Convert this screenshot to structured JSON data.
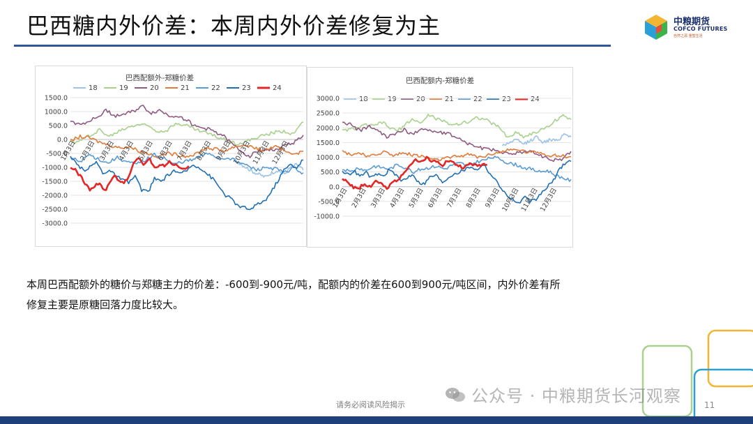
{
  "slide": {
    "title": "巴西糖内外价差：本周内外价差修复为主",
    "logo": {
      "cn": "中粮期货",
      "en": "COFCO FUTURES",
      "tag": "自然之源 重塑生活"
    },
    "summary": "本周巴西配额外的糖价与郑糖主力的价差：-600到-900元/吨，配额内的价差在600到900元/吨区间，内外价差有所修复主要是原糖回落力度比较大。",
    "disclaimer": "请务必阅读风险揭示",
    "page_number": "11",
    "watermark": "公众号 · 中粮期货长河观察"
  },
  "colors": {
    "title_rule": "#2f5597",
    "footer": "#1f3f7a",
    "s18": "#9dc3e6",
    "s19": "#a9d18e",
    "s20": "#8e5a7f",
    "s21": "#e07b39",
    "s22": "#5b9bd5",
    "s23": "#1f6fb2",
    "s24": "#e32626"
  },
  "chart_data": [
    {
      "type": "line",
      "title": "巴西配额外-郑糖价差",
      "ylim": [
        -3000,
        1500
      ],
      "yticks": [
        "1500.0",
        "1000.0",
        "500.0",
        "0.0",
        "-500.0",
        "-1000.0",
        "-1500.0",
        "-2000.0",
        "-2500.0",
        "-3000.0"
      ],
      "xticks": [
        "1月3日",
        "2月3日",
        "3月3日",
        "4月3日",
        "5月3日",
        "6月3日",
        "7月3日",
        "8月3日",
        "9月3日",
        "10月3日",
        "11月3日",
        "12月3日"
      ],
      "legend_position": "top",
      "series": [
        {
          "name": "18",
          "color": "#9dc3e6",
          "start": 8.4,
          "end": 12,
          "values": [
            -700,
            -850,
            -1000,
            -1150,
            -1250,
            -1350,
            -1200,
            -1100,
            -1250,
            -1000,
            -900,
            -1100
          ]
        },
        {
          "name": "19",
          "color": "#a9d18e",
          "start": 0,
          "end": 12,
          "values": [
            -100,
            -50,
            150,
            350,
            100,
            300,
            450,
            550,
            500,
            300,
            350,
            600,
            500,
            350,
            250,
            100,
            0,
            -150,
            -100,
            50,
            150,
            250,
            300,
            200,
            650
          ]
        },
        {
          "name": "20",
          "color": "#8e5a7f",
          "start": 0,
          "end": 12,
          "values": [
            650,
            550,
            650,
            800,
            1050,
            850,
            900,
            1000,
            1200,
            950,
            1050,
            850,
            850,
            700,
            450,
            400,
            300,
            150,
            -150,
            -400,
            -600,
            -400,
            -350,
            -400,
            -200,
            -100,
            150
          ]
        },
        {
          "name": "21",
          "color": "#e07b39",
          "start": 0,
          "end": 12,
          "values": [
            -50,
            100,
            50,
            -100,
            -200,
            -300,
            -250,
            -400,
            -500,
            -600,
            -500,
            -550,
            -600,
            -500,
            -300,
            -350,
            -400,
            -250,
            -200,
            -300,
            -400,
            -250,
            -400,
            -500,
            -450
          ]
        },
        {
          "name": "22",
          "color": "#5b9bd5",
          "start": 0,
          "end": 12,
          "values": [
            -650,
            -800,
            -550,
            -700,
            -850,
            -650,
            -800,
            -900,
            -750,
            -550,
            -650,
            -900,
            -800,
            -750,
            -600,
            -500,
            -700,
            -650,
            -800,
            -950,
            -1100,
            -1000,
            -1050,
            -1200,
            -1000,
            -1250
          ]
        },
        {
          "name": "23",
          "color": "#1f6fb2",
          "start": 0,
          "end": 12,
          "values": [
            -650,
            -900,
            -1100,
            -1000,
            -800,
            -1200,
            -1100,
            -1300,
            -1450,
            -1550,
            -1300,
            -1800,
            -1900,
            -1400,
            -1500,
            -1300,
            -1100,
            -1250,
            -1100,
            -900,
            -1000,
            -1200,
            -1400,
            -1700,
            -2000,
            -2150,
            -2400,
            -2450,
            -2500,
            -2300,
            -2200,
            -1900,
            -1500,
            -1100,
            -900,
            -1000,
            -700
          ]
        },
        {
          "name": "24",
          "color": "#e32626",
          "start": 0,
          "end": 6.1,
          "values": [
            -1000,
            -1100,
            -1300,
            -1600,
            -1800,
            -1700,
            -1500,
            -1900,
            -1550,
            -1300,
            -1500,
            -1550,
            -1300,
            -800,
            -650,
            -900,
            -700,
            -1050,
            -900,
            -950,
            -800,
            -900,
            -1000,
            -1050,
            -1000
          ]
        }
      ]
    },
    {
      "type": "line",
      "title": "巴西配额内-郑糖价差",
      "ylim": [
        -1000,
        3000
      ],
      "yticks": [
        "3000.0",
        "2500.0",
        "2000.0",
        "1500.0",
        "1000.0",
        "500.0",
        "0.0",
        "-500.0",
        "-1000.0"
      ],
      "xticks": [
        "1月3日",
        "2月3日",
        "3月3日",
        "4月3日",
        "5月3日",
        "6月3日",
        "7月3日",
        "8月3日",
        "9月3日",
        "10月3日",
        "11月3日",
        "12月3日"
      ],
      "legend_position": "top",
      "series": [
        {
          "name": "18",
          "color": "#9dc3e6",
          "start": 8.4,
          "end": 12,
          "values": [
            1400,
            1500,
            1600,
            1450,
            1550,
            1700,
            1500,
            1600,
            1550,
            1800,
            1700
          ]
        },
        {
          "name": "19",
          "color": "#a9d18e",
          "start": 0,
          "end": 12,
          "values": [
            1900,
            1950,
            2000,
            2100,
            2050,
            2200,
            2000,
            1900,
            2100,
            2300,
            2150,
            2450,
            2300,
            2200,
            2100,
            2150,
            2200,
            2350,
            2300,
            2150,
            2000,
            1650,
            1850,
            1700,
            1800,
            1900,
            2000,
            2250,
            2400,
            2300
          ]
        },
        {
          "name": "20",
          "color": "#8e5a7f",
          "start": 0,
          "end": 12,
          "values": [
            2200,
            2100,
            1900,
            2050,
            1900,
            1700,
            1800,
            1950,
            1750,
            2000,
            1900,
            1850,
            1800,
            1700,
            1500,
            1400,
            1300,
            1250,
            1200,
            1100,
            1150,
            1200,
            1150,
            1000,
            900,
            950,
            1200
          ]
        },
        {
          "name": "21",
          "color": "#e07b39",
          "start": 0,
          "end": 12,
          "values": [
            1200,
            1100,
            1150,
            1000,
            1100,
            1200,
            1050,
            1150,
            1100,
            1050,
            1000,
            900,
            950,
            1000,
            1050,
            1100,
            1000,
            1050,
            1150,
            1200,
            1250,
            1250,
            1150,
            1200,
            1100,
            1050,
            1050,
            1000
          ]
        },
        {
          "name": "22",
          "color": "#5b9bd5",
          "start": 0,
          "end": 12,
          "values": [
            600,
            500,
            650,
            550,
            700,
            650,
            600,
            750,
            650,
            500,
            600,
            650,
            700,
            600,
            750,
            800,
            700,
            850,
            900,
            1000,
            950,
            800,
            750,
            650,
            600,
            500,
            550,
            400,
            300,
            200
          ]
        },
        {
          "name": "23",
          "color": "#1f6fb2",
          "start": 0,
          "end": 12,
          "values": [
            500,
            400,
            550,
            350,
            500,
            300,
            450,
            350,
            600,
            400,
            200,
            300,
            450,
            150,
            100,
            350,
            400,
            150,
            300,
            450,
            500,
            600,
            700,
            550,
            800,
            500,
            250,
            0,
            -300,
            -400,
            -600,
            -350,
            -500,
            -450,
            -200,
            0,
            200,
            600,
            800,
            900
          ]
        },
        {
          "name": "24",
          "color": "#e32626",
          "start": 0,
          "end": 7.6,
          "values": [
            300,
            100,
            0,
            -50,
            100,
            0,
            200,
            100,
            -100,
            150,
            250,
            500,
            700,
            900,
            800,
            1000,
            850,
            900,
            750,
            900,
            800,
            700,
            650,
            800,
            700,
            750,
            800
          ]
        }
      ]
    }
  ]
}
